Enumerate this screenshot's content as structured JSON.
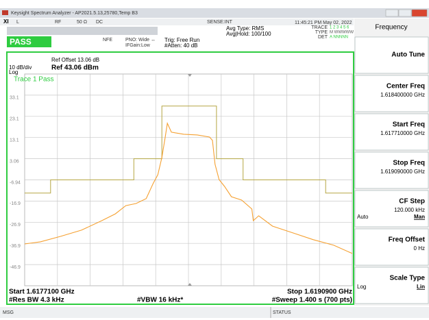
{
  "window": {
    "title": "Keysight Spectrum Analyzer - AP2021.5.13,25780,Temp B3"
  },
  "status_row": {
    "items": [
      "L",
      "RF",
      "50 Ω",
      "DC",
      "SENSE:INT"
    ],
    "datetime": "11:45:21 PM May 02, 2022"
  },
  "settings": {
    "verdict": "PASS",
    "nfe": "NFE",
    "pno": "PNO: Wide ↔",
    "ifgain": "IFGain:Low",
    "trig": "Trig: Free Run",
    "atten": "#Atten: 40 dB",
    "avg_type": "Avg Type: RMS",
    "avg_hold": "Avg|Hold: 100/100",
    "trace_label": "TRACE",
    "trace_nums": "1 2 3 4 5 6",
    "type_label": "TYPE",
    "type_vals": "M WWWWW",
    "det_label": "DET",
    "det_vals": "A NNNNN"
  },
  "display": {
    "ref_offset": "Ref Offset 13.06 dB",
    "scale": "10 dB/div",
    "ref_level": "Ref 43.06 dBm",
    "scale_type": "Log",
    "trace_status": "Trace 1 Pass",
    "start": "Start 1.6177100 GHz",
    "stop": "Stop 1.6190900 GHz",
    "res_bw": "#Res BW 4.3 kHz",
    "vbw": "#VBW 16 kHz*",
    "sweep": "#Sweep  1.400 s (700 pts)"
  },
  "chart_data": {
    "type": "line",
    "xlim": [
      1.61771,
      1.61909
    ],
    "xticks": [
      1.617848,
      1.617986,
      1.618124,
      1.618262,
      1.6184,
      1.618538,
      1.618676,
      1.618814,
      1.618952
    ],
    "ylim": [
      -56.94,
      43.06
    ],
    "yticks": [
      {
        "value": 33.06,
        "label": "33.1"
      },
      {
        "value": 23.06,
        "label": "23.1"
      },
      {
        "value": 13.06,
        "label": "13.1"
      },
      3.06,
      -6.94,
      {
        "value": -16.94,
        "label": "-16.9"
      },
      {
        "value": -26.94,
        "label": "-26.9"
      },
      {
        "value": -36.94,
        "label": "-36.9"
      },
      {
        "value": -46.94,
        "label": "-46.9"
      }
    ],
    "grid": true,
    "series": [
      {
        "color": "#b5a642",
        "step": true,
        "x": [
          1.61771,
          1.617819,
          1.61817,
          1.618288,
          1.618518,
          1.61863,
          1.618978,
          1.61909
        ],
        "values": [
          -13.2,
          -6.94,
          3.06,
          27.9,
          3.06,
          -6.94,
          -13.2,
          -13.2
        ]
      },
      {
        "color": "#f5a030",
        "x": [
          1.61771,
          1.617776,
          1.617862,
          1.617949,
          1.618035,
          1.618092,
          1.618136,
          1.618179,
          1.618222,
          1.618251,
          1.618271,
          1.618288,
          1.618302,
          1.618311,
          1.618328,
          1.61838,
          1.618437,
          1.618489,
          1.618501,
          1.618512,
          1.618529,
          1.618552,
          1.618581,
          1.618624,
          1.618667,
          1.618673,
          1.618696,
          1.618754,
          1.61884,
          1.618926,
          1.619012,
          1.61909
        ],
        "values": [
          -37.2,
          -36.2,
          -33.6,
          -30.7,
          -26.2,
          -23.0,
          -19.1,
          -18.1,
          -15.8,
          -8.7,
          -4.5,
          3.6,
          13.3,
          19.8,
          15.6,
          14.6,
          14.3,
          13.3,
          11.7,
          0.4,
          -6.8,
          -10.0,
          -14.9,
          -16.5,
          -20.7,
          -26.2,
          -23.9,
          -28.8,
          -32.0,
          -35.2,
          -37.8,
          -41.7
        ]
      }
    ]
  },
  "status_bar": {
    "msg": "MSG",
    "status": "STATUS"
  },
  "softkeys": {
    "menu": "Frequency",
    "keys": [
      {
        "label": "Auto Tune"
      },
      {
        "label": "Center Freq",
        "value": "1.618400000 GHz"
      },
      {
        "label": "Start Freq",
        "value": "1.617710000 GHz"
      },
      {
        "label": "Stop Freq",
        "value": "1.619090000 GHz"
      },
      {
        "label": "CF Step",
        "value": "120.000 kHz",
        "options": [
          "Auto",
          "Man"
        ]
      },
      {
        "label": "Freq Offset",
        "value": "0 Hz"
      },
      {
        "label": "Scale Type",
        "options": [
          "Log",
          "Lin"
        ]
      }
    ]
  }
}
